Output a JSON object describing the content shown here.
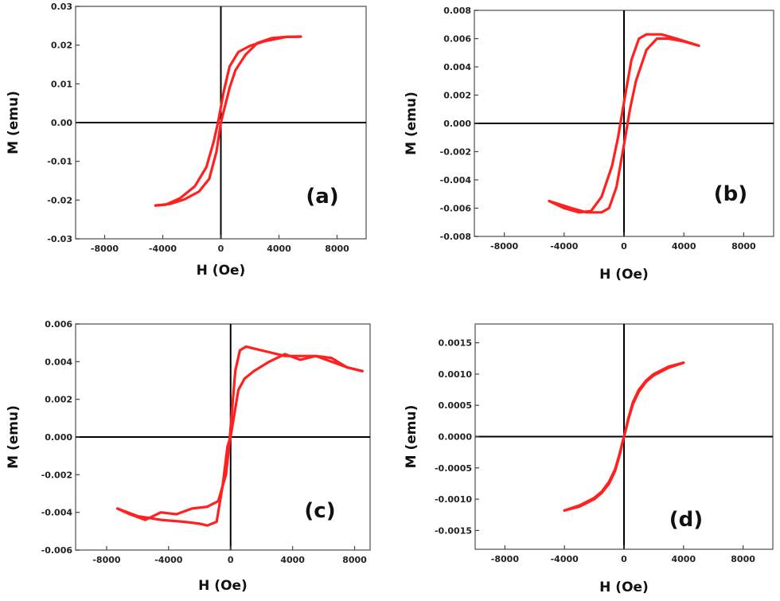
{
  "figure": {
    "curve_color": "#ff2020",
    "axis_color": "#000000"
  },
  "chart_data": [
    {
      "type": "line",
      "panel_label": "(a)",
      "xlabel": "H (Oe)",
      "ylabel": "M (emu)",
      "xlim": [
        -10000,
        10000
      ],
      "ylim": [
        -0.03,
        0.03
      ],
      "xticks": [
        -8000,
        -4000,
        0,
        4000,
        8000
      ],
      "yticks": [
        -0.03,
        -0.02,
        -0.01,
        0.0,
        0.01,
        0.02,
        0.03
      ],
      "xtick_labels": [
        "-8000",
        "-4000",
        "0",
        "4000",
        "8000"
      ],
      "ytick_labels": [
        "-0.03",
        "-0.02",
        "-0.01",
        "0.00",
        "0.01",
        "0.02",
        "0.03"
      ],
      "series": [
        {
          "x": [
            5500,
            4500,
            3000,
            2000,
            1200,
            600,
            200,
            -200,
            -500,
            -1000,
            -1800,
            -2800,
            -3800,
            -4500
          ],
          "y": [
            0.0222,
            0.0221,
            0.021,
            0.0198,
            0.0182,
            0.0145,
            0.008,
            0.0,
            -0.005,
            -0.0115,
            -0.0165,
            -0.0195,
            -0.0212,
            -0.0214
          ]
        },
        {
          "x": [
            -4500,
            -3500,
            -2500,
            -1500,
            -800,
            -300,
            0,
            300,
            600,
            1000,
            1700,
            2500,
            3500,
            4500,
            5500
          ],
          "y": [
            -0.0214,
            -0.021,
            -0.0198,
            -0.0178,
            -0.0145,
            -0.0075,
            0.0,
            0.0045,
            0.009,
            0.0135,
            0.0175,
            0.0205,
            0.0218,
            0.0221,
            0.0222
          ]
        }
      ]
    },
    {
      "type": "line",
      "panel_label": "(b)",
      "xlabel": "H (Oe)",
      "ylabel": "M (emu)",
      "xlim": [
        -10000,
        10000
      ],
      "ylim": [
        -0.008,
        0.008
      ],
      "xticks": [
        -8000,
        -4000,
        0,
        4000,
        8000
      ],
      "yticks": [
        -0.008,
        -0.006,
        -0.004,
        -0.002,
        0.0,
        0.002,
        0.004,
        0.006,
        0.008
      ],
      "xtick_labels": [
        "-8000",
        "-4000",
        "0",
        "4000",
        "8000"
      ],
      "ytick_labels": [
        "-0.008",
        "-0.006",
        "-0.004",
        "-0.002",
        "0.000",
        "0.002",
        "0.004",
        "0.006",
        "0.008"
      ],
      "series": [
        {
          "x": [
            5000,
            3500,
            2500,
            1500,
            1000,
            500,
            0,
            -400,
            -800,
            -1500,
            -2200,
            -3000,
            -4000,
            -5000
          ],
          "y": [
            0.0055,
            0.006,
            0.0063,
            0.0063,
            0.006,
            0.0045,
            0.0015,
            -0.001,
            -0.003,
            -0.0052,
            -0.0062,
            -0.0063,
            -0.006,
            -0.0055
          ]
        },
        {
          "x": [
            -5000,
            -3500,
            -2500,
            -1500,
            -1000,
            -500,
            0,
            400,
            800,
            1500,
            2200,
            3000,
            4000,
            5000
          ],
          "y": [
            -0.0055,
            -0.006,
            -0.0063,
            -0.0063,
            -0.006,
            -0.0045,
            -0.0015,
            0.001,
            0.003,
            0.0052,
            0.006,
            0.006,
            0.0058,
            0.0055
          ]
        }
      ]
    },
    {
      "type": "line",
      "panel_label": "(c)",
      "xlabel": "H (Oe)",
      "ylabel": "M (emu)",
      "xlim": [
        -10000,
        9000
      ],
      "ylim": [
        -0.006,
        0.006
      ],
      "xticks": [
        -8000,
        -4000,
        0,
        4000,
        8000
      ],
      "yticks": [
        -0.006,
        -0.004,
        -0.002,
        0.0,
        0.002,
        0.004,
        0.006
      ],
      "xtick_labels": [
        "-8000",
        "-4000",
        "0",
        "4000",
        "8000"
      ],
      "ytick_labels": [
        "-0.006",
        "-0.004",
        "-0.002",
        "0.000",
        "0.002",
        "0.004",
        "0.006"
      ],
      "series": [
        {
          "x": [
            8500,
            7500,
            6500,
            5500,
            4500,
            3500,
            2500,
            1500,
            1000,
            600,
            300,
            100,
            -100,
            -300,
            -800,
            -1500,
            -2500,
            -3500,
            -4500,
            -5500,
            -6500,
            -7300
          ],
          "y": [
            0.0035,
            0.0037,
            0.0042,
            0.0043,
            0.0043,
            0.0043,
            0.0045,
            0.0047,
            0.0048,
            0.0046,
            0.0035,
            0.0015,
            -0.0005,
            -0.002,
            -0.0034,
            -0.0037,
            -0.0038,
            -0.0041,
            -0.004,
            -0.0044,
            -0.0041,
            -0.0038
          ]
        },
        {
          "x": [
            -7300,
            -6000,
            -4500,
            -3000,
            -2000,
            -1500,
            -900,
            -500,
            -200,
            0,
            200,
            500,
            900,
            1500,
            2500,
            3500,
            4500,
            5500,
            6500,
            7500,
            8500
          ],
          "y": [
            -0.0038,
            -0.0042,
            -0.0044,
            -0.0045,
            -0.0046,
            -0.0047,
            -0.0045,
            -0.0025,
            -0.0005,
            0.0,
            0.001,
            0.0025,
            0.0031,
            0.0035,
            0.004,
            0.0044,
            0.0041,
            0.0043,
            0.004,
            0.0037,
            0.0035
          ]
        }
      ]
    },
    {
      "type": "line",
      "panel_label": "(d)",
      "xlabel": "H (Oe)",
      "ylabel": "M (emu)",
      "xlim": [
        -10000,
        10000
      ],
      "ylim": [
        -0.0018,
        0.0018
      ],
      "xticks": [
        -8000,
        -4000,
        0,
        4000,
        8000
      ],
      "yticks": [
        -0.0015,
        -0.001,
        -0.0005,
        0.0,
        0.0005,
        0.001,
        0.0015
      ],
      "xtick_labels": [
        "-8000",
        "-4000",
        "0",
        "4000",
        "8000"
      ],
      "ytick_labels": [
        "-0.0015",
        "-0.0010",
        "-0.0005",
        "0.0000",
        "0.0005",
        "0.0010",
        "0.0015"
      ],
      "series": [
        {
          "x": [
            -4000,
            -3000,
            -2000,
            -1500,
            -1000,
            -600,
            -300,
            -100,
            0,
            100,
            300,
            600,
            1000,
            1500,
            2000,
            3000,
            4000
          ],
          "y": [
            -0.00118,
            -0.00112,
            -0.001,
            -0.0009,
            -0.00075,
            -0.00055,
            -0.0003,
            -0.0001,
            0.0,
            0.0001,
            0.0003,
            0.00055,
            0.00075,
            0.0009,
            0.001,
            0.00112,
            0.00118
          ]
        },
        {
          "x": [
            4000,
            3000,
            2000,
            1500,
            1000,
            600,
            300,
            100,
            0,
            -100,
            -300,
            -600,
            -1000,
            -1500,
            -2000,
            -3000,
            -4000
          ],
          "y": [
            0.00118,
            0.0011,
            0.00098,
            0.00088,
            0.00072,
            0.00052,
            0.00028,
            9e-05,
            0.0,
            -9e-05,
            -0.00028,
            -0.00052,
            -0.00072,
            -0.00088,
            -0.00098,
            -0.0011,
            -0.00118
          ]
        }
      ]
    }
  ]
}
